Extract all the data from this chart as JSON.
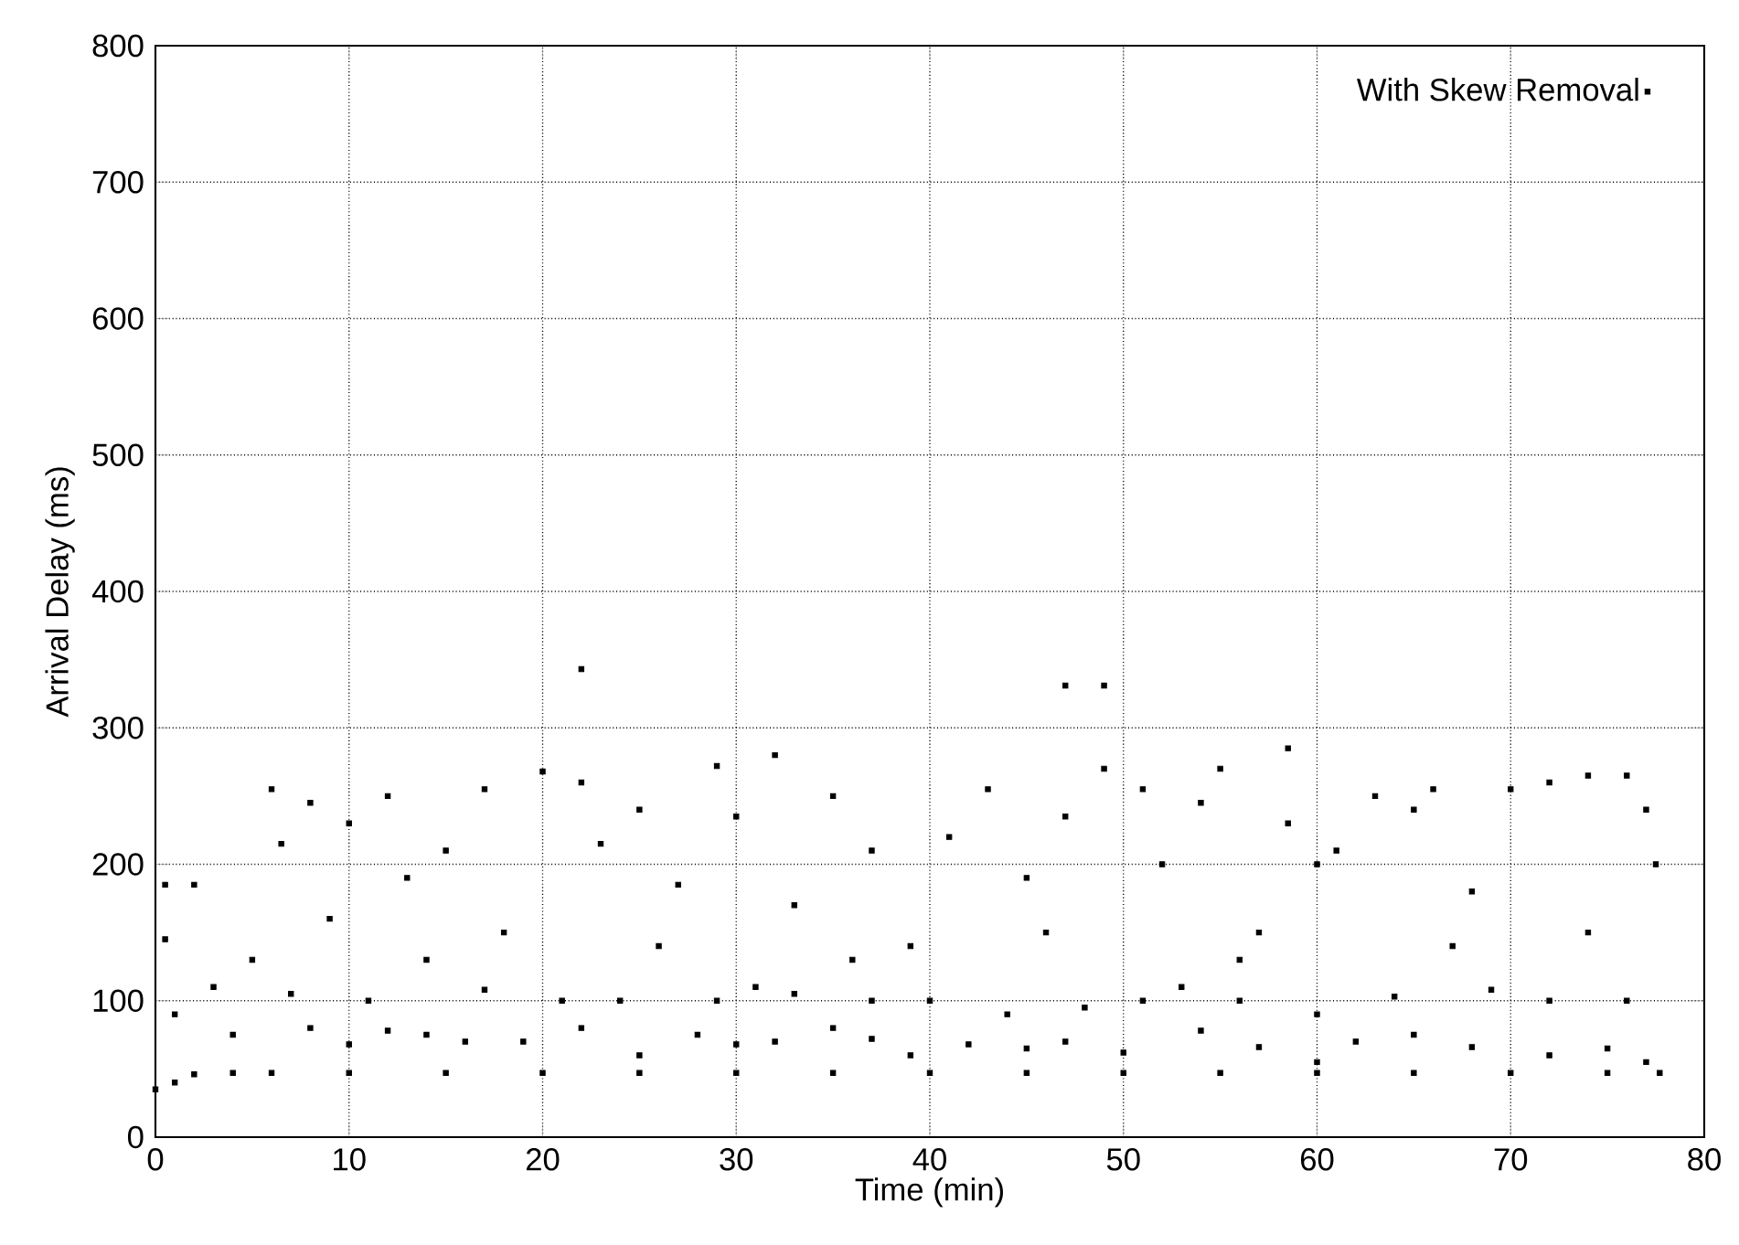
{
  "chart_data": {
    "type": "scatter",
    "xlabel": "Time (min)",
    "ylabel": "Arrival Delay (ms)",
    "xlim": [
      0,
      80
    ],
    "ylim": [
      0,
      800
    ],
    "xticks": [
      0,
      10,
      20,
      30,
      40,
      50,
      60,
      70,
      80
    ],
    "yticks": [
      0,
      100,
      200,
      300,
      400,
      500,
      600,
      700,
      800
    ],
    "grid": true,
    "legend": "top right",
    "marker": "square",
    "series": [
      {
        "name": "With Skew Removal",
        "color": "#000000",
        "x": [
          0,
          1,
          2,
          4,
          6,
          10,
          15,
          20,
          25,
          30,
          35,
          40,
          45,
          50,
          55,
          60,
          65,
          70,
          75,
          77.7,
          0.5,
          0.5,
          2,
          3,
          4,
          1,
          8,
          10,
          12,
          14,
          16,
          19,
          22,
          25,
          28,
          30,
          32,
          35,
          37,
          39,
          42,
          45,
          47,
          50,
          54,
          57,
          60,
          62,
          65,
          68,
          72,
          75,
          77,
          7,
          11,
          17,
          21,
          24,
          29,
          31,
          33,
          37,
          40,
          44,
          48,
          51,
          53,
          56,
          60,
          64,
          69,
          72,
          76,
          6,
          6.5,
          8,
          9,
          10,
          12,
          13,
          15,
          17,
          18,
          20,
          22,
          23,
          25,
          27,
          29,
          30,
          32,
          33,
          35,
          37,
          39,
          41,
          43,
          45,
          47,
          49,
          51,
          52,
          54,
          55,
          57,
          58.5,
          60,
          61,
          63,
          65,
          66,
          68,
          70,
          72,
          74,
          76,
          77,
          77.5,
          5,
          14,
          26,
          36,
          46,
          56,
          67,
          74,
          22,
          47,
          49,
          58.5
        ],
        "values": [
          35,
          40,
          46,
          47,
          47,
          47,
          47,
          47,
          47,
          47,
          47,
          47,
          47,
          47,
          47,
          47,
          47,
          47,
          47,
          47,
          185,
          145,
          185,
          110,
          75,
          90,
          80,
          68,
          78,
          75,
          70,
          70,
          80,
          60,
          75,
          68,
          70,
          80,
          72,
          60,
          68,
          65,
          70,
          62,
          78,
          66,
          55,
          70,
          75,
          66,
          60,
          65,
          55,
          105,
          100,
          108,
          100,
          100,
          100,
          110,
          105,
          100,
          100,
          90,
          95,
          100,
          110,
          100,
          90,
          103,
          108,
          100,
          100,
          255,
          215,
          245,
          160,
          230,
          250,
          190,
          210,
          255,
          150,
          268,
          260,
          215,
          240,
          185,
          272,
          235,
          280,
          170,
          250,
          210,
          140,
          220,
          255,
          190,
          235,
          270,
          255,
          200,
          245,
          270,
          150,
          230,
          200,
          210,
          250,
          240,
          255,
          180,
          255,
          260,
          265,
          265,
          240,
          200,
          130,
          130,
          140,
          130,
          150,
          130,
          140,
          150,
          343,
          331,
          331,
          285
        ]
      }
    ]
  }
}
